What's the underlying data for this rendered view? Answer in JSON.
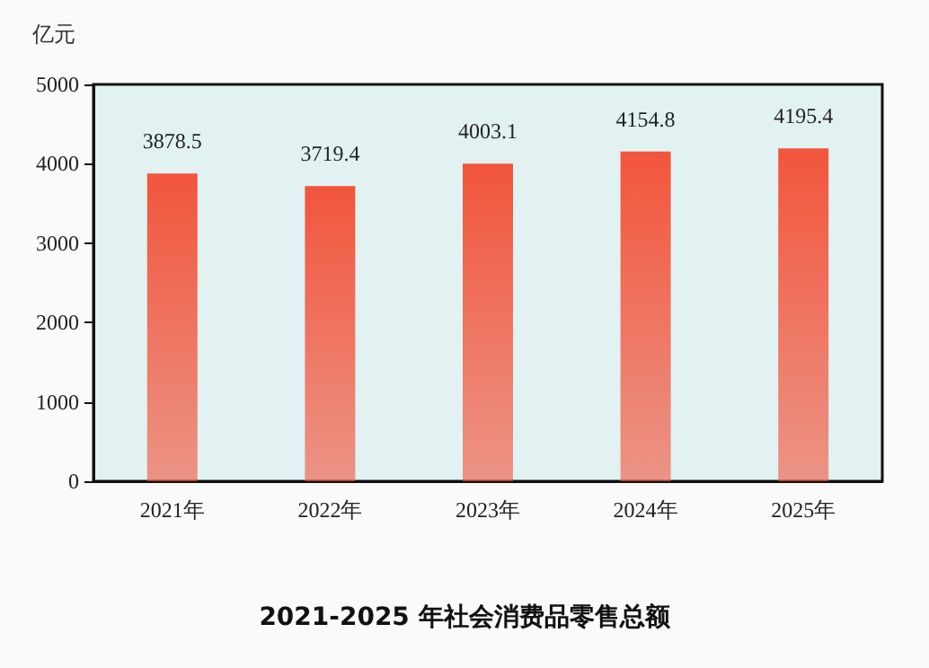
{
  "chart_data": {
    "type": "bar",
    "title": "2021-2025 年社会消费品零售总额",
    "ylabel": "亿元",
    "categories": [
      "2021年",
      "2022年",
      "2023年",
      "2024年",
      "2025年"
    ],
    "values": [
      3878.5,
      3719.4,
      4003.1,
      4154.8,
      4195.4
    ],
    "color": "#f2553c",
    "ylim": [
      0,
      5000
    ],
    "yticks": [
      0,
      1000,
      2000,
      3000,
      4000,
      5000
    ],
    "grid": false,
    "data_labels": true
  }
}
